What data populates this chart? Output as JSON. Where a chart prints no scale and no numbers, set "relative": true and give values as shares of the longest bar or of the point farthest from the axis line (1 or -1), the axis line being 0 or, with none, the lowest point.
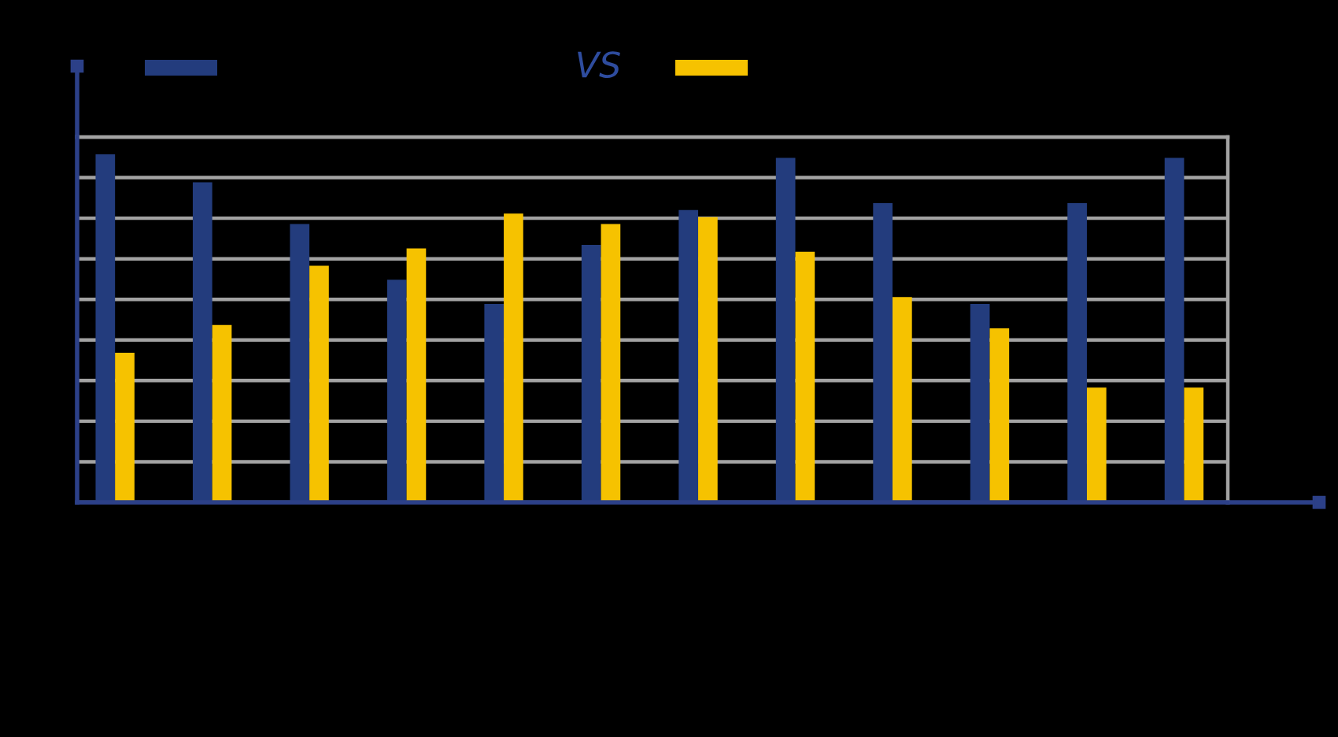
{
  "chart_data": {
    "type": "bar",
    "title": "VS",
    "relative": true,
    "categories": [
      null,
      null,
      null,
      null,
      null,
      null,
      null,
      null,
      null,
      null,
      null,
      null
    ],
    "series": [
      {
        "color": "#233c7d",
        "values": [
          1,
          0.92,
          0.8,
          0.64,
          0.57,
          0.74,
          0.84,
          0.99,
          0.86,
          0.57,
          0.86,
          0.99
        ]
      },
      {
        "color": "#f6c200",
        "values": [
          0.43,
          0.51,
          0.68,
          0.73,
          0.83,
          0.8,
          0.82,
          0.72,
          0.59,
          0.5,
          0.33,
          0.33
        ]
      }
    ],
    "grid": "y"
  }
}
